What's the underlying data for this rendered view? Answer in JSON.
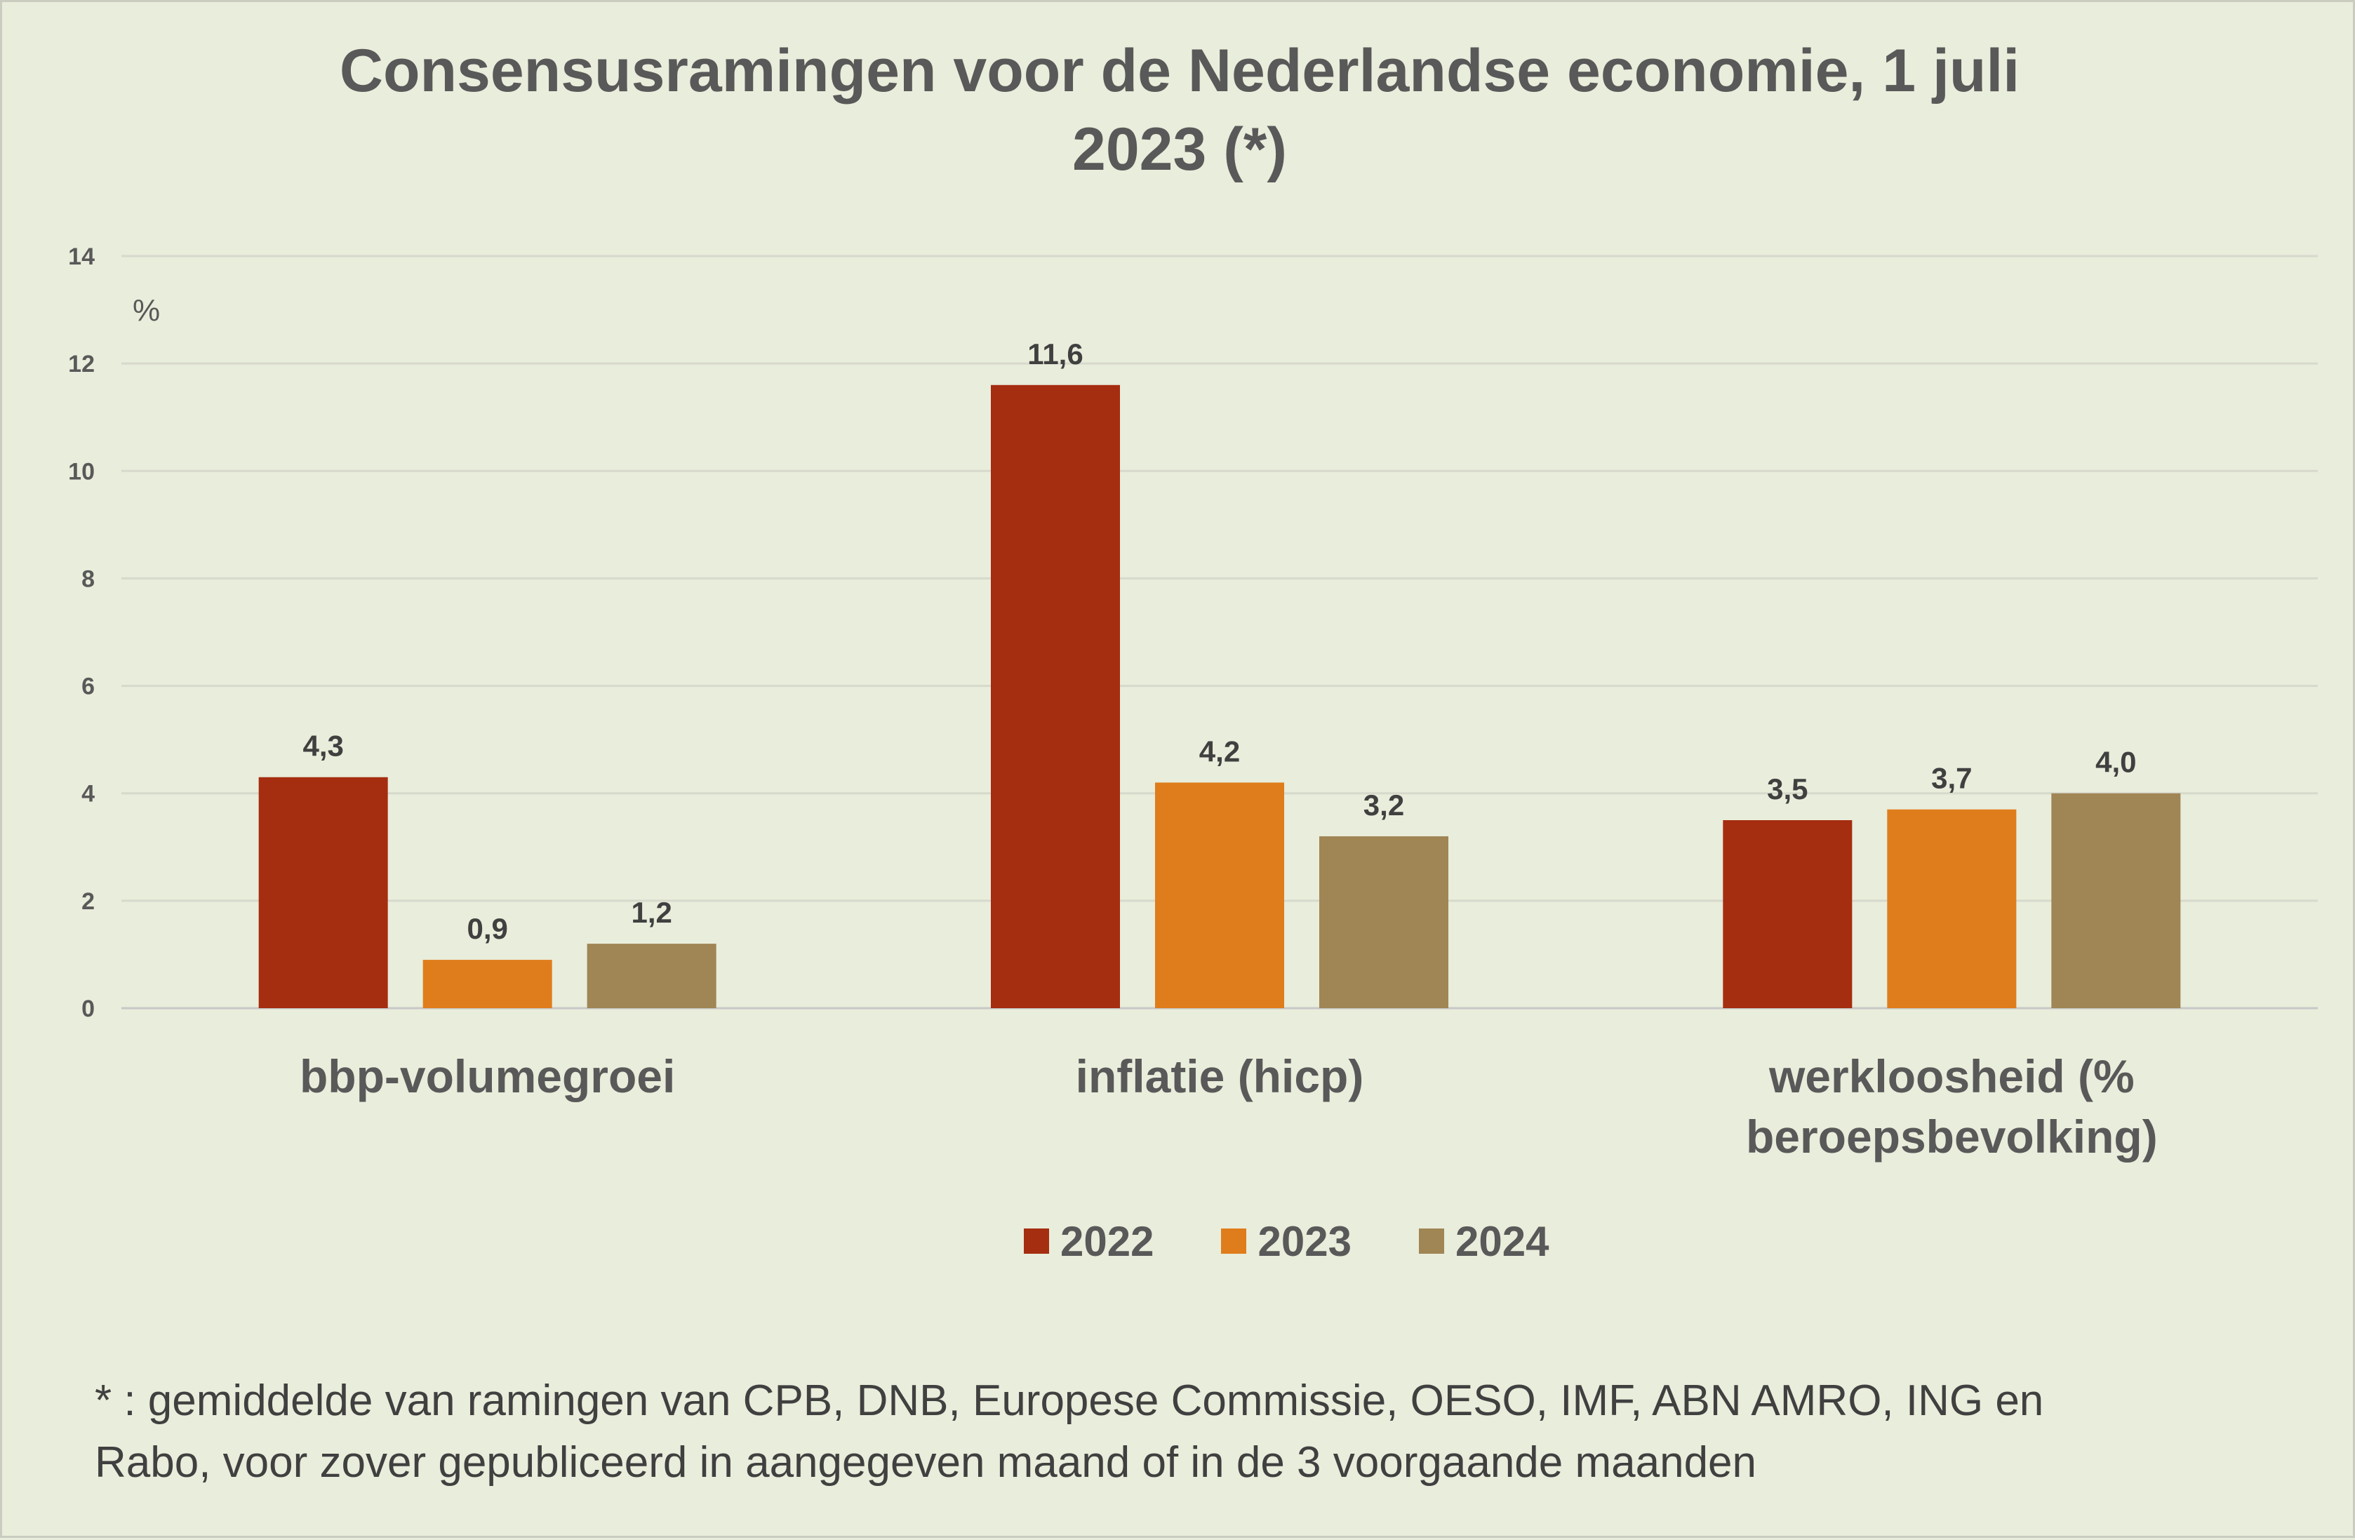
{
  "chart_data": {
    "type": "bar",
    "title": "Consensusramingen voor de Nederlandse economie, 1 juli 2023 (*)",
    "title_lines": [
      "Consensusramingen voor de Nederlandse economie, 1 juli",
      "2023 (*)"
    ],
    "categories": [
      "bbp-volumegroei",
      "inflatie (hicp)",
      "werkloosheid (% beroepsbevolking)"
    ],
    "category_label_lines": [
      [
        "bbp-volumegroei"
      ],
      [
        "inflatie (hicp)"
      ],
      [
        "werkloosheid (%",
        "beroepsbevolking)"
      ]
    ],
    "series": [
      {
        "name": "2022",
        "color": "#a52d10",
        "values": [
          4.3,
          11.6,
          3.5
        ],
        "labels": [
          "4,3",
          "11,6",
          "3,5"
        ]
      },
      {
        "name": "2023",
        "color": "#df7d1c",
        "values": [
          0.9,
          4.2,
          3.7
        ],
        "labels": [
          "0,9",
          "4,2",
          "3,7"
        ]
      },
      {
        "name": "2024",
        "color": "#a08555",
        "values": [
          1.2,
          3.2,
          4.0
        ],
        "labels": [
          "1,2",
          "3,2",
          "4,0"
        ]
      }
    ],
    "ylabel": "%",
    "ylim": [
      0,
      14
    ],
    "yticks": [
      0,
      2,
      4,
      6,
      8,
      10,
      12,
      14
    ],
    "grid": true,
    "legend_position": "bottom"
  },
  "footnote": {
    "lines": [
      "* : gemiddelde van ramingen van CPB, DNB, Europese Commissie, OESO, IMF, ABN AMRO, ING en",
      "Rabo, voor zover gepubliceerd in aangegeven maand of in de 3 voorgaande maanden"
    ]
  }
}
